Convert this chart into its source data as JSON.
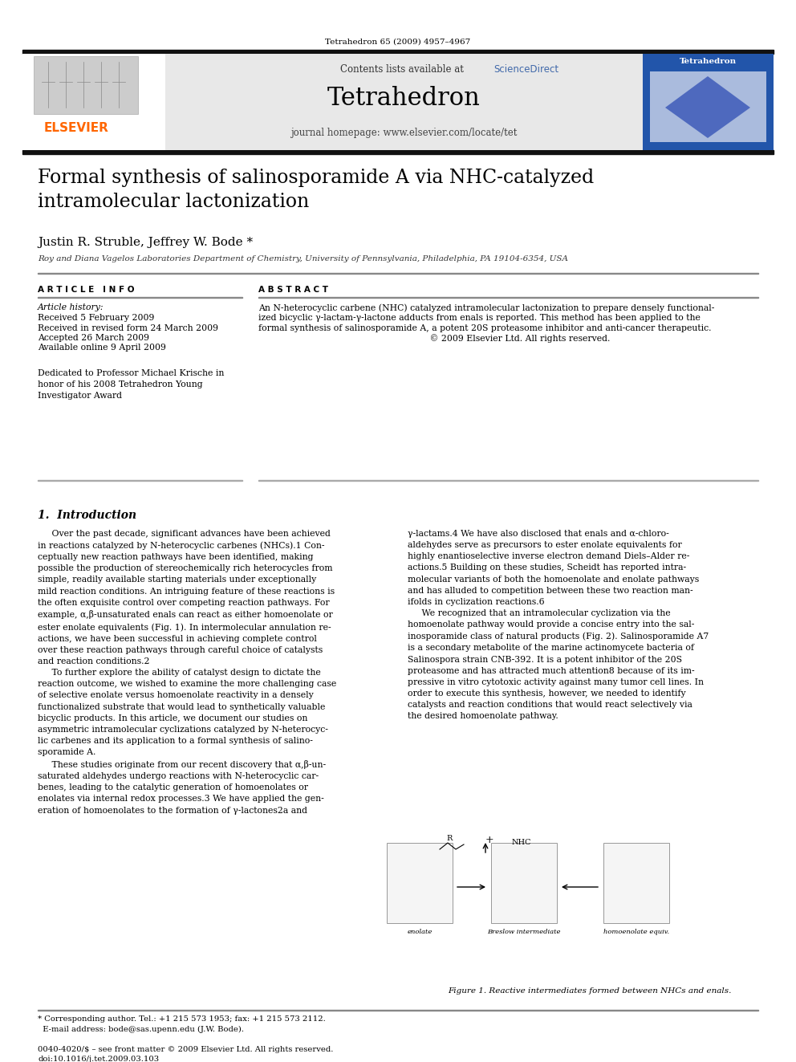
{
  "bg_color": "#ffffff",
  "header_bg": "#e8e8e8",
  "journal_ref": "Tetrahedron 65 (2009) 4957–4967",
  "journal_name": "Tetrahedron",
  "journal_homepage": "journal homepage: www.elsevier.com/locate/tet",
  "sciencedirect_color": "#4169aa",
  "elsevier_color": "#ff6600",
  "title": "Formal synthesis of salinosporamide A via NHC-catalyzed\nintramolecular lactonization",
  "authors": "Justin R. Struble, Jeffrey W. Bode *",
  "affiliation": "Roy and Diana Vagelos Laboratories Department of Chemistry, University of Pennsylvania, Philadelphia, PA 19104-6354, USA",
  "article_info_header": "A R T I C L E   I N F O",
  "abstract_header": "A B S T R A C T",
  "article_history_label": "Article history:",
  "history_items": [
    "Received 5 February 2009",
    "Received in revised form 24 March 2009",
    "Accepted 26 March 2009",
    "Available online 9 April 2009"
  ],
  "dedication": "Dedicated to Professor Michael Krische in\nhonor of his 2008 Tetrahedron Young\nInvestigator Award",
  "intro_section": "1.  Introduction",
  "figure1_caption": "Figure 1. Reactive intermediates formed between NHCs and enals.",
  "footer_text": "* Corresponding author. Tel.: +1 215 573 1953; fax: +1 215 573 2112.\n  E-mail address: bode@sas.upenn.edu (J.W. Bode).\n\n0040-4020/$ – see front matter © 2009 Elsevier Ltd. All rights reserved.\ndoi:10.1016/j.tet.2009.03.103"
}
